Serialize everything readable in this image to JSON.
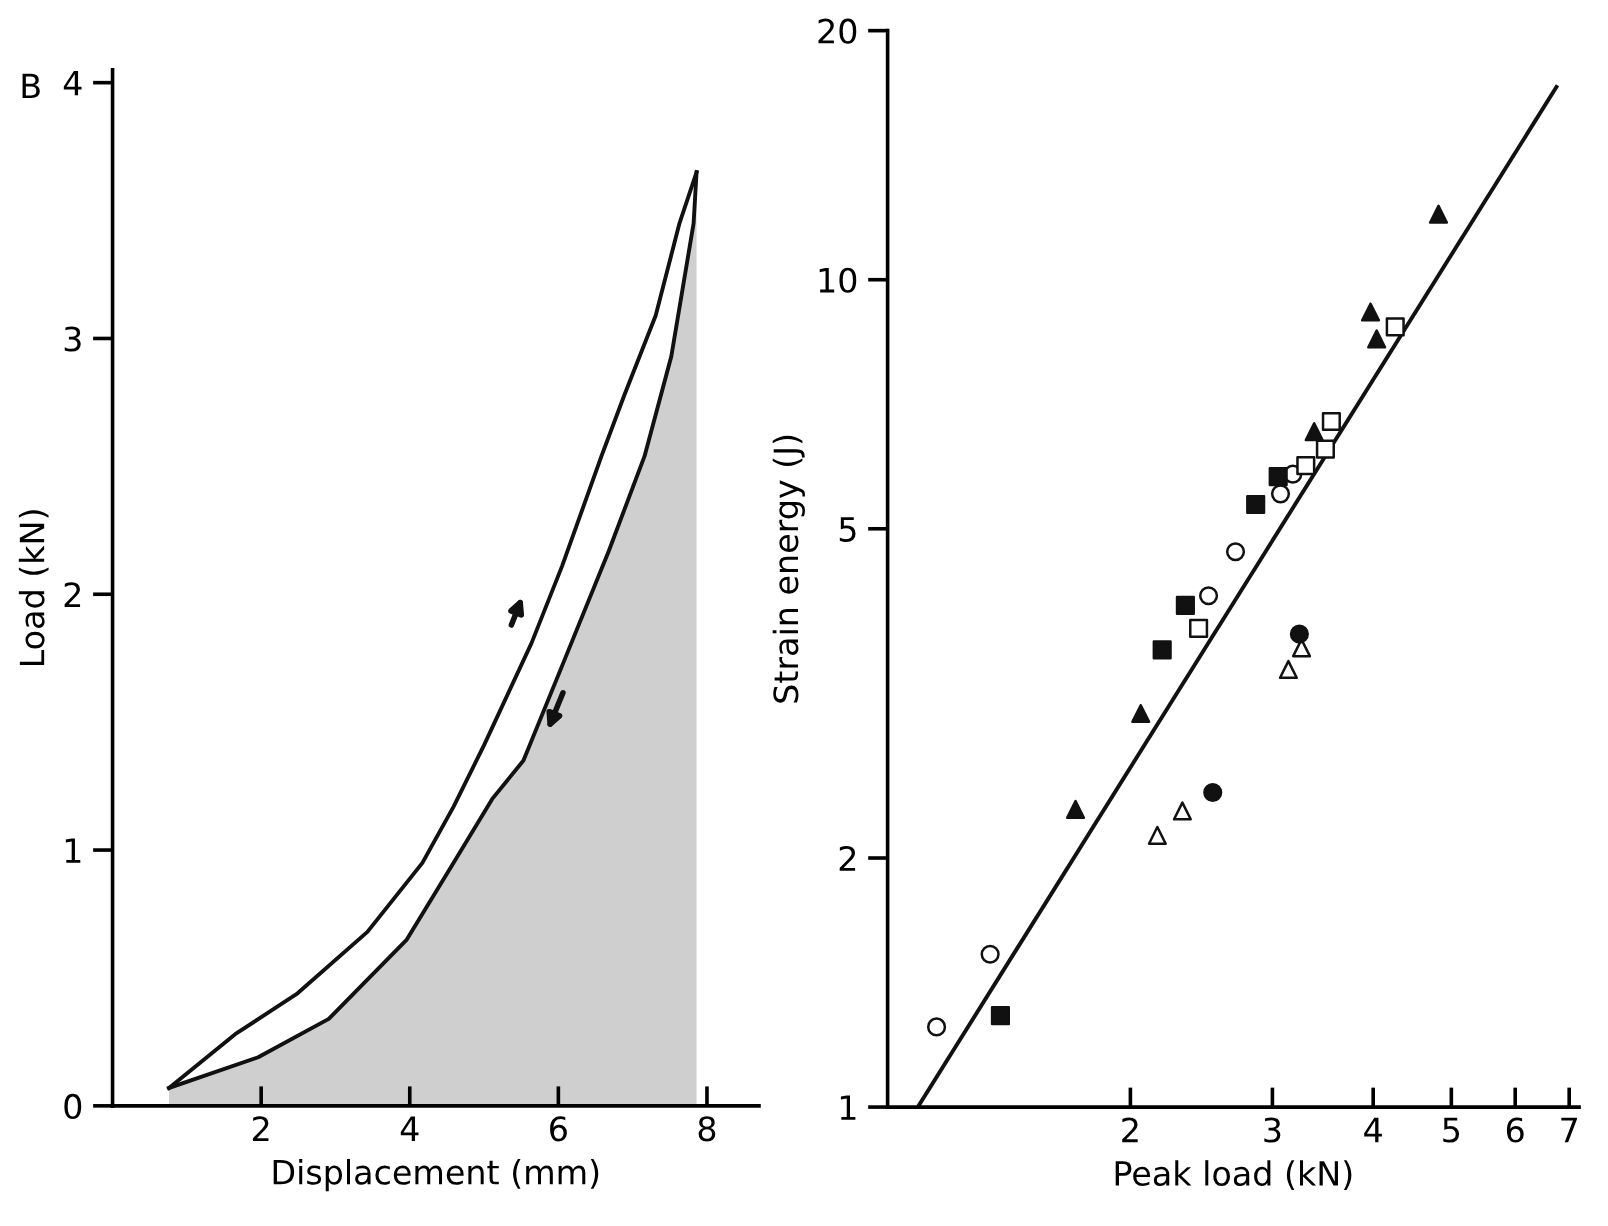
{
  "chart_data": [
    {
      "type": "line",
      "xlabel": "Displacement (mm)",
      "ylabel": "Load (kN)",
      "annotations": [
        "B"
      ],
      "xlim": [
        0,
        8.7
      ],
      "ylim": [
        0,
        4.05
      ],
      "xticks": [
        2,
        4,
        6,
        8
      ],
      "yticks": [
        0,
        1,
        2,
        3,
        4
      ],
      "grid": false,
      "legend": false,
      "series": [
        {
          "type": "line",
          "color": "#111111",
          "x": [
            0.76,
            1.65,
            2.49,
            3.43,
            4.17,
            4.59,
            5.0,
            5.64,
            6.05,
            6.58,
            6.89,
            7.31,
            7.63,
            7.86
          ],
          "values": [
            0.07,
            0.28,
            0.44,
            0.68,
            0.95,
            1.17,
            1.41,
            1.81,
            2.11,
            2.54,
            2.78,
            3.09,
            3.45,
            3.65
          ]
        },
        {
          "type": "area",
          "color": "#cfcfcf",
          "x": [
            0.76,
            1.96,
            2.91,
            3.96,
            4.59,
            5.11,
            5.53,
            6.05,
            6.68,
            7.16,
            7.52,
            7.82,
            7.86
          ],
          "values": [
            0.07,
            0.19,
            0.34,
            0.65,
            0.95,
            1.2,
            1.35,
            1.72,
            2.17,
            2.54,
            2.93,
            3.45,
            3.65
          ]
        }
      ]
    },
    {
      "type": "scatter",
      "xlabel": "Peak load (kN)",
      "ylabel": "Strain energy (J)",
      "log": "xy",
      "xlim": [
        1,
        7.2
      ],
      "ylim": [
        1,
        20
      ],
      "xticks": [
        2,
        3,
        4,
        5,
        6,
        7
      ],
      "yticks": [
        1,
        2,
        5,
        10,
        20
      ],
      "grid": false,
      "legend": false,
      "series": [
        {
          "marker": "circle",
          "color": "#ffffff",
          "x": [
            1.15,
            1.34,
            2.5,
            2.7,
            3.07,
            3.18
          ],
          "values": [
            1.25,
            1.53,
            4.15,
            4.69,
            5.51,
            5.82
          ]
        },
        {
          "marker": "square",
          "color": "#111111",
          "x": [
            1.38,
            2.19,
            2.34,
            2.86,
            3.05
          ],
          "values": [
            1.29,
            3.57,
            4.04,
            5.35,
            5.78
          ]
        },
        {
          "marker": "square",
          "color": "#ffffff",
          "x": [
            2.43,
            3.3,
            3.49,
            3.55,
            4.26
          ],
          "values": [
            3.79,
            5.96,
            6.24,
            6.74,
            8.77
          ]
        },
        {
          "marker": "triangle",
          "color": "#111111",
          "x": [
            1.71,
            2.06,
            3.38,
            3.97,
            4.04,
            4.82
          ],
          "values": [
            2.29,
            2.99,
            6.55,
            9.14,
            8.48,
            12.0
          ]
        },
        {
          "marker": "triangle",
          "color": "#ffffff",
          "x": [
            2.16,
            2.32,
            3.14,
            3.26
          ],
          "values": [
            2.13,
            2.28,
            3.38,
            3.59
          ]
        },
        {
          "marker": "circle",
          "color": "#111111",
          "x": [
            2.53,
            3.24
          ],
          "values": [
            2.4,
            3.73
          ]
        },
        {
          "type": "line",
          "marker": "none",
          "color": "#111111",
          "x": [
            1.09,
            6.75
          ],
          "values": [
            1,
            17.1
          ]
        }
      ]
    }
  ]
}
